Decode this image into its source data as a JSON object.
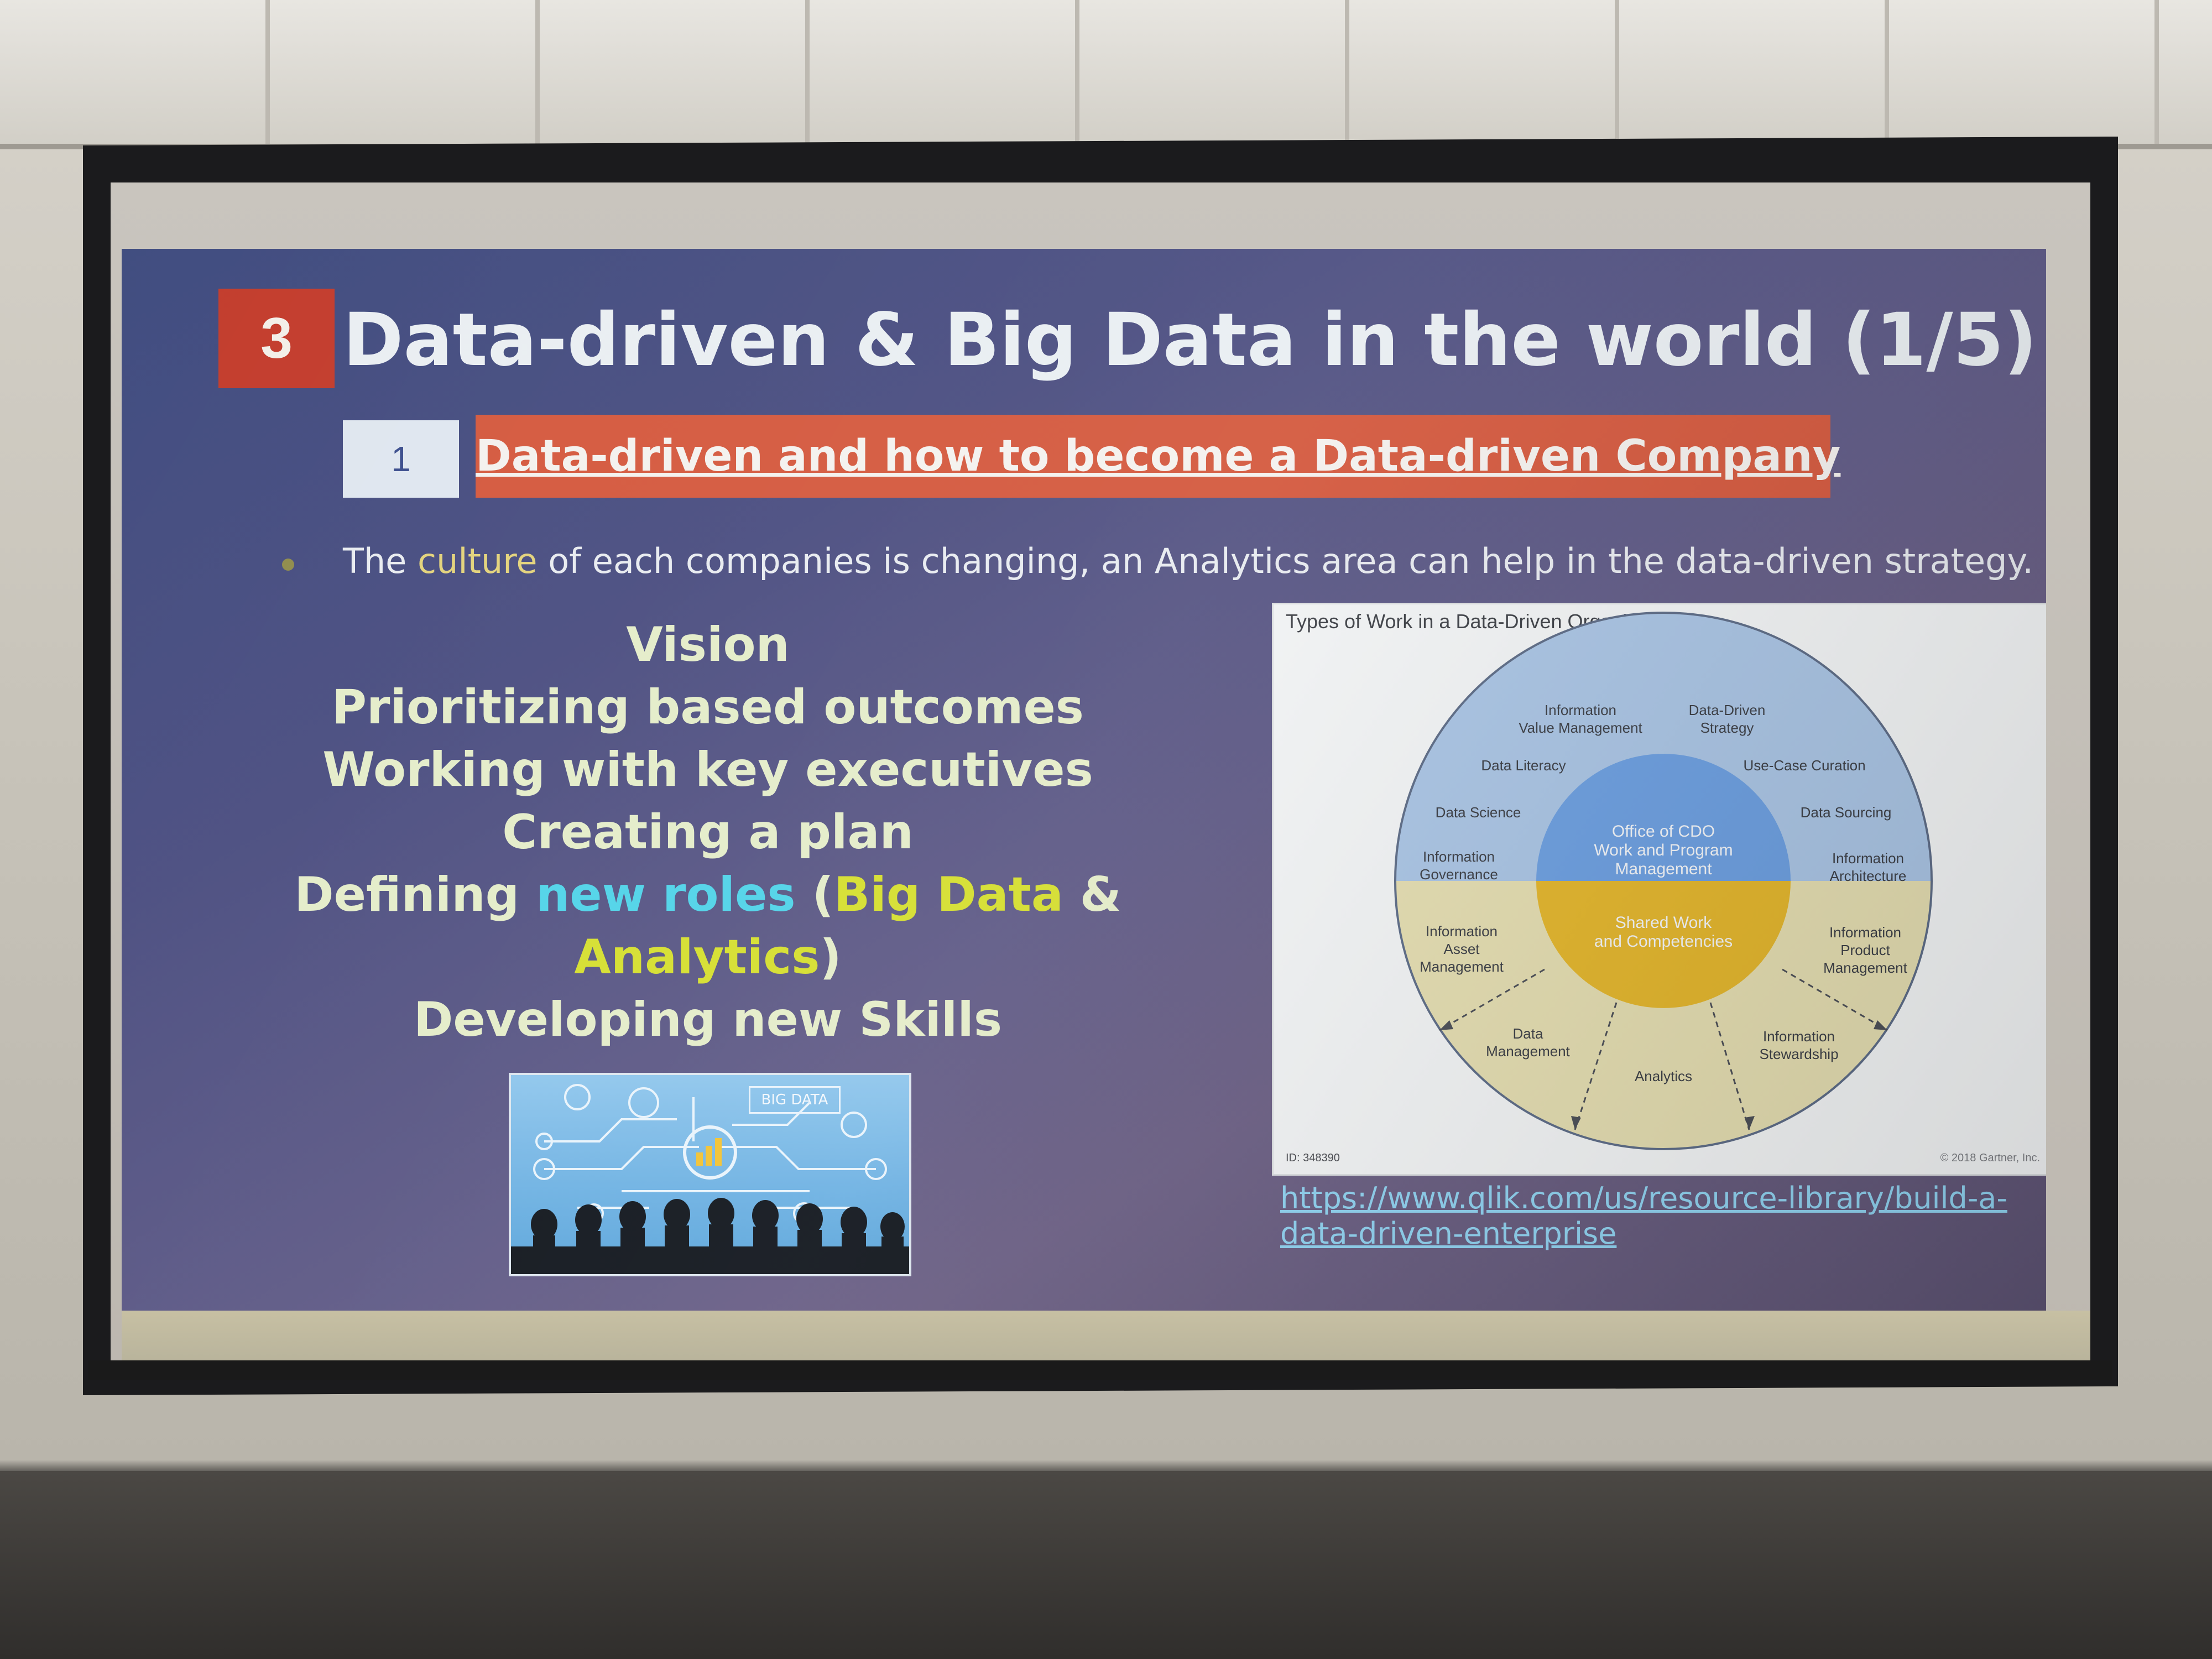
{
  "slide": {
    "section_number": "3",
    "title": "Data-driven & Big Data in the world (1/5)",
    "subsection_number": "1",
    "subsection_title": "Data-driven and how to become a Data-driven Company",
    "bullet": {
      "before": "The ",
      "highlight": "culture",
      "after": " of each companies is changing, an Analytics area can help in the data-driven strategy."
    },
    "points": {
      "vision": "Vision",
      "prioritizing": "Prioritizing based outcomes",
      "working": "Working with key executives",
      "plan": "Creating a plan",
      "defining_prefix": "Defining ",
      "defining_new_roles": "new roles",
      "defining_open": " (",
      "defining_big_data": "Big Data",
      "defining_amp": " &",
      "analytics": "Analytics",
      "analytics_close": ")",
      "skills": "Developing new Skills"
    },
    "image_label": "BIG DATA",
    "link_line1": "https://www.qlik.com/us/resource-library/build-a-",
    "link_line2": "data-driven-enterprise"
  },
  "diagram": {
    "title": "Types of Work in a Data-Driven Organization",
    "center_top": [
      "Office of CDO",
      "Work and Program",
      "Management"
    ],
    "center_bottom": [
      "Shared Work",
      "and Competencies"
    ],
    "labels": {
      "ivm": [
        "Information",
        "Value Management"
      ],
      "dds": [
        "Data-Driven",
        "Strategy"
      ],
      "literacy": "Data Literacy",
      "usecase": "Use-Case Curation",
      "science": "Data Science",
      "sourcing": "Data Sourcing",
      "governance": [
        "Information",
        "Governance"
      ],
      "architecture": [
        "Information",
        "Architecture"
      ],
      "asset": [
        "Information",
        "Asset",
        "Management"
      ],
      "product": [
        "Information",
        "Product",
        "Management"
      ],
      "datamgmt": [
        "Data",
        "Management"
      ],
      "stewardship": [
        "Information",
        "Stewardship"
      ],
      "analytics": "Analytics"
    },
    "id": "ID: 348390",
    "copyright": "© 2018 Gartner, Inc."
  },
  "colors": {
    "section_box": "#c23a2a",
    "subsection_bar": "#d4583d",
    "highlight_blue": "#4fd3e8",
    "highlight_yellow": "#d5de2e",
    "diagram_blue": "#6b9ee0",
    "diagram_gold": "#e3b52a"
  }
}
